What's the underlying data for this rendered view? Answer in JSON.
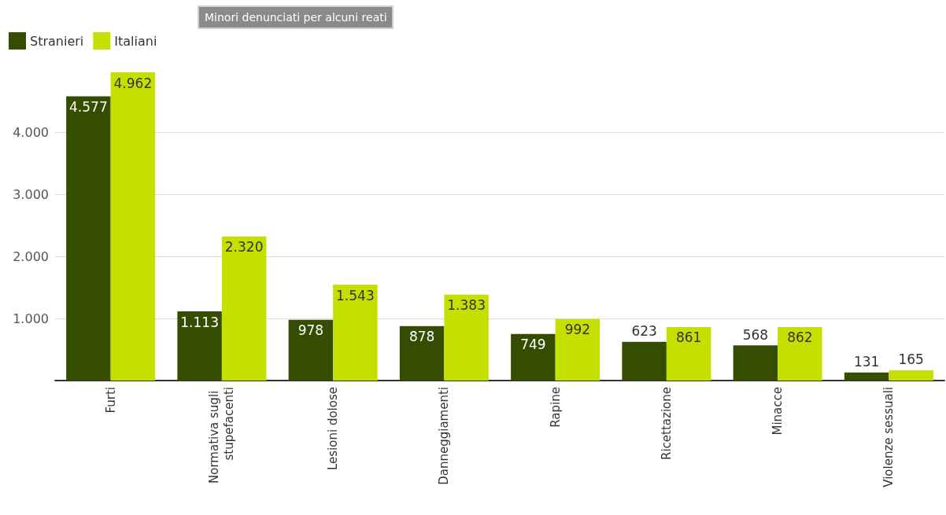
{
  "chart_data": {
    "type": "bar",
    "title": "Minori denunciati per alcuni reati",
    "categories": [
      "Furti",
      "Normativa sugli stupefacenti",
      "Lesioni dolose",
      "Danneggiamenti",
      "Rapine",
      "Ricettazione",
      "Minacce",
      "Violenze sessuali"
    ],
    "series": [
      {
        "name": "Stranieri",
        "color": "#344d00",
        "values": [
          4577,
          1113,
          978,
          878,
          749,
          623,
          568,
          131
        ],
        "value_labels": [
          "4.577",
          "1.113",
          "978",
          "878",
          "749",
          "623",
          "568",
          "131"
        ]
      },
      {
        "name": "Italiani",
        "color": "#c5e000",
        "values": [
          4962,
          2320,
          1543,
          1383,
          992,
          861,
          862,
          165
        ],
        "value_labels": [
          "4.962",
          "2.320",
          "1.543",
          "1.383",
          "992",
          "861",
          "862",
          "165"
        ]
      }
    ],
    "ylim": [
      0,
      5000
    ],
    "yticks": [
      {
        "value": 0,
        "label": null
      },
      {
        "value": 1000,
        "label": "1.000"
      },
      {
        "value": 2000,
        "label": "2.000"
      },
      {
        "value": 3000,
        "label": "3.000"
      },
      {
        "value": 4000,
        "label": "4.000"
      }
    ],
    "grid": "y",
    "legend": "top left"
  }
}
